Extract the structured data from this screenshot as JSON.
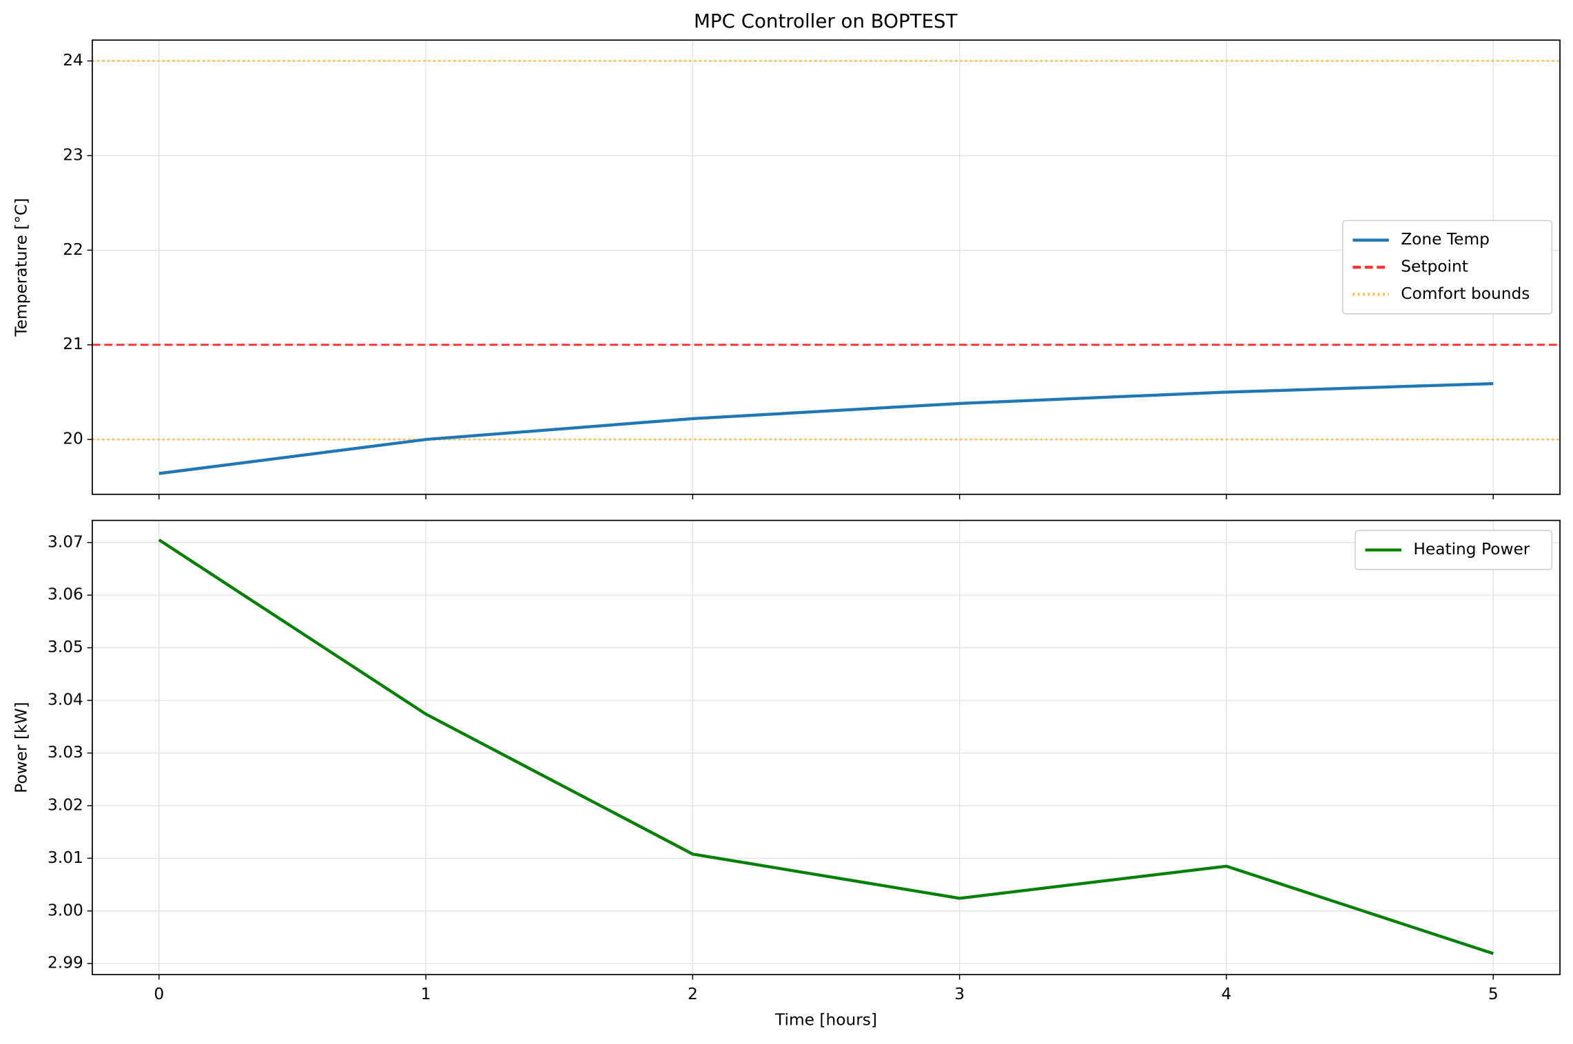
{
  "chart_data": [
    {
      "type": "line",
      "title": "MPC Controller on BOPTEST",
      "ylabel": "Temperature [°C]",
      "x": [
        0,
        1,
        2,
        3,
        4,
        5
      ],
      "series": [
        {
          "name": "Zone Temp",
          "color": "#1f77b4",
          "values": [
            19.64,
            20.0,
            20.22,
            20.38,
            20.5,
            20.59
          ]
        }
      ],
      "hlines": [
        {
          "name": "Setpoint",
          "color": "#ff3333",
          "style": "dashed",
          "values": [
            21
          ]
        },
        {
          "name": "Comfort bounds",
          "color": "#ffc04d",
          "style": "dotted",
          "values": [
            20,
            24
          ]
        }
      ],
      "xlim": [
        -0.25,
        5.25
      ],
      "xticks": [
        0,
        1,
        2,
        3,
        4,
        5
      ],
      "ylim": [
        19.42,
        24.22
      ],
      "yticks": [
        20,
        21,
        22,
        23,
        24
      ],
      "grid": true,
      "legend": "center right"
    },
    {
      "type": "line",
      "xlabel": "Time [hours]",
      "ylabel": "Power [kW]",
      "x": [
        0,
        1,
        2,
        3,
        4,
        5
      ],
      "series": [
        {
          "name": "Heating Power",
          "color": "#008000",
          "values": [
            3.0705,
            3.0374,
            3.0108,
            3.0024,
            3.0085,
            2.9919
          ]
        }
      ],
      "xlim": [
        -0.25,
        5.25
      ],
      "xticks": [
        0,
        1,
        2,
        3,
        4,
        5
      ],
      "ylim": [
        2.9879,
        3.0742
      ],
      "yticks": [
        2.99,
        {
          "value": 3,
          "label": "3.00"
        },
        3.01,
        3.02,
        3.03,
        3.04,
        3.05,
        3.06,
        3.07
      ],
      "grid": true,
      "legend": "upper right"
    }
  ]
}
